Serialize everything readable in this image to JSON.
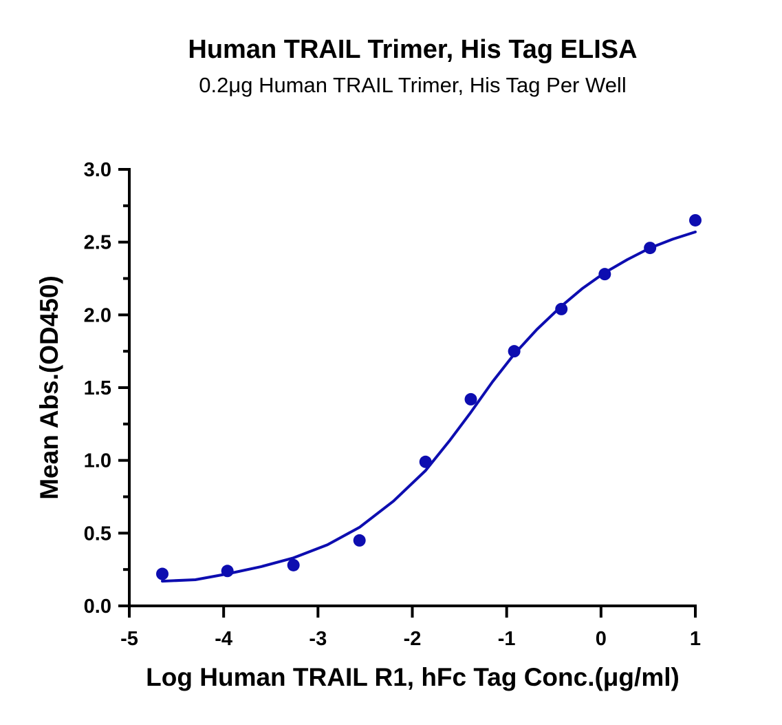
{
  "chart_data": {
    "type": "scatter",
    "title": "Human TRAIL Trimer, His Tag ELISA",
    "subtitle": "0.2μg Human TRAIL Trimer, His Tag Per Well",
    "xlabel": "Log Human TRAIL R1, hFc Tag Conc.(μg/ml)",
    "ylabel": "Mean Abs.(OD450)",
    "xlim": [
      -5,
      1
    ],
    "ylim": [
      0,
      3
    ],
    "x_ticks": [
      "-5",
      "-4",
      "-3",
      "-2",
      "-1",
      "0",
      "1"
    ],
    "y_ticks": [
      "0.0",
      "0.5",
      "1.0",
      "1.5",
      "2.0",
      "2.5",
      "3.0"
    ],
    "grid": false,
    "legend": "none",
    "color": "#0d0db0",
    "points": [
      {
        "x": -4.65,
        "y": 0.22
      },
      {
        "x": -3.96,
        "y": 0.24
      },
      {
        "x": -3.26,
        "y": 0.28
      },
      {
        "x": -2.56,
        "y": 0.45
      },
      {
        "x": -1.86,
        "y": 0.99
      },
      {
        "x": -1.38,
        "y": 1.42
      },
      {
        "x": -0.92,
        "y": 1.75
      },
      {
        "x": -0.42,
        "y": 2.04
      },
      {
        "x": 0.04,
        "y": 2.28
      },
      {
        "x": 0.52,
        "y": 2.46
      },
      {
        "x": 1.0,
        "y": 2.65
      }
    ],
    "fit_curve": [
      {
        "x": -4.65,
        "y": 0.17
      },
      {
        "x": -4.3,
        "y": 0.18
      },
      {
        "x": -3.96,
        "y": 0.22
      },
      {
        "x": -3.6,
        "y": 0.27
      },
      {
        "x": -3.26,
        "y": 0.33
      },
      {
        "x": -2.9,
        "y": 0.42
      },
      {
        "x": -2.56,
        "y": 0.54
      },
      {
        "x": -2.2,
        "y": 0.72
      },
      {
        "x": -1.86,
        "y": 0.93
      },
      {
        "x": -1.6,
        "y": 1.14
      },
      {
        "x": -1.38,
        "y": 1.33
      },
      {
        "x": -1.15,
        "y": 1.54
      },
      {
        "x": -0.92,
        "y": 1.73
      },
      {
        "x": -0.68,
        "y": 1.9
      },
      {
        "x": -0.42,
        "y": 2.06
      },
      {
        "x": -0.2,
        "y": 2.18
      },
      {
        "x": 0.04,
        "y": 2.29
      },
      {
        "x": 0.28,
        "y": 2.38
      },
      {
        "x": 0.52,
        "y": 2.46
      },
      {
        "x": 0.76,
        "y": 2.52
      },
      {
        "x": 1.0,
        "y": 2.57
      }
    ]
  }
}
